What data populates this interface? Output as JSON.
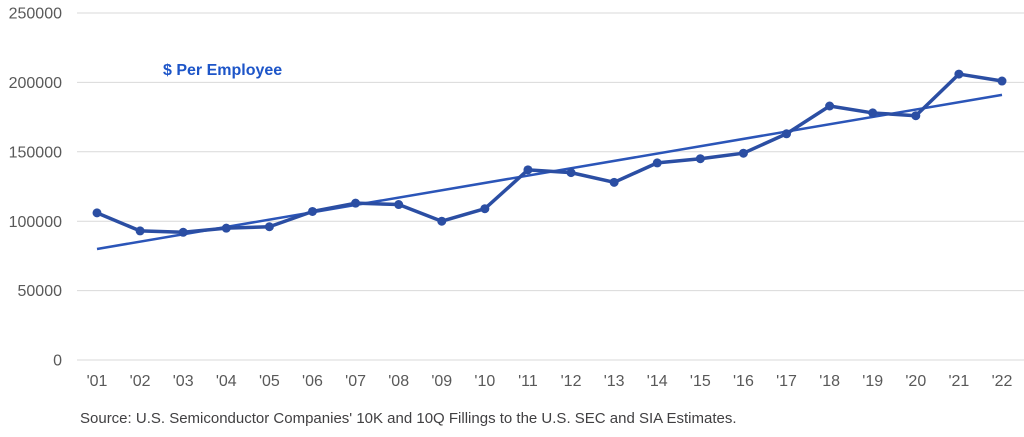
{
  "chart_data": {
    "type": "line",
    "title": "$ Per Employee",
    "x_labels": [
      "'01",
      "'02",
      "'03",
      "'04",
      "'05",
      "'06",
      "'07",
      "'08",
      "'09",
      "'10",
      "'11",
      "'12",
      "'13",
      "'14",
      "'15",
      "'16",
      "'17",
      "'18",
      "'19",
      "'20",
      "'21",
      "'22"
    ],
    "series": [
      {
        "name": "$ Per Employee",
        "values": [
          106000,
          93000,
          92000,
          95000,
          96000,
          107000,
          113000,
          112000,
          100000,
          109000,
          137000,
          135000,
          128000,
          142000,
          145000,
          149000,
          163000,
          183000,
          178000,
          176000,
          206000,
          201000
        ]
      }
    ],
    "trendline": {
      "start_value": 80000,
      "end_value": 191000
    },
    "y_ticks": [
      "0",
      "50000",
      "100000",
      "150000",
      "200000",
      "250000"
    ],
    "y_tick_values": [
      0,
      50000,
      100000,
      150000,
      200000,
      250000
    ],
    "ylim": [
      0,
      250000
    ],
    "grid": "horizontal",
    "legend_position": "inside-top-left",
    "colors": {
      "series_line": "#2b4ea3",
      "trend_line": "#2b55b8",
      "title_text": "#1d55c8",
      "axis_text": "#595959",
      "gridline": "#d9d9d9",
      "source_text": "#414042"
    }
  },
  "source_note": "Source: U.S. Semiconductor Companies' 10K and 10Q Fillings to the U.S. SEC and SIA Estimates."
}
